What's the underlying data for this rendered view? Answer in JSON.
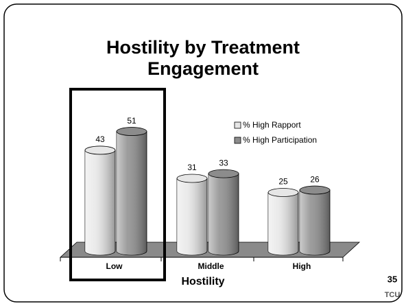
{
  "chart_data": {
    "type": "bar",
    "title": "Hostility by Treatment Engagement",
    "xlabel": "Hostility",
    "categories": [
      "Low",
      "Middle",
      "High"
    ],
    "series": [
      {
        "name": "% High Rapport",
        "color": "#e6e6e6",
        "values": [
          43,
          31,
          25
        ]
      },
      {
        "name": "% High Participation",
        "color": "#8c8c8c",
        "values": [
          51,
          33,
          26
        ]
      }
    ],
    "highlight": "Low"
  },
  "slide_number": "35",
  "logo": "TCU"
}
